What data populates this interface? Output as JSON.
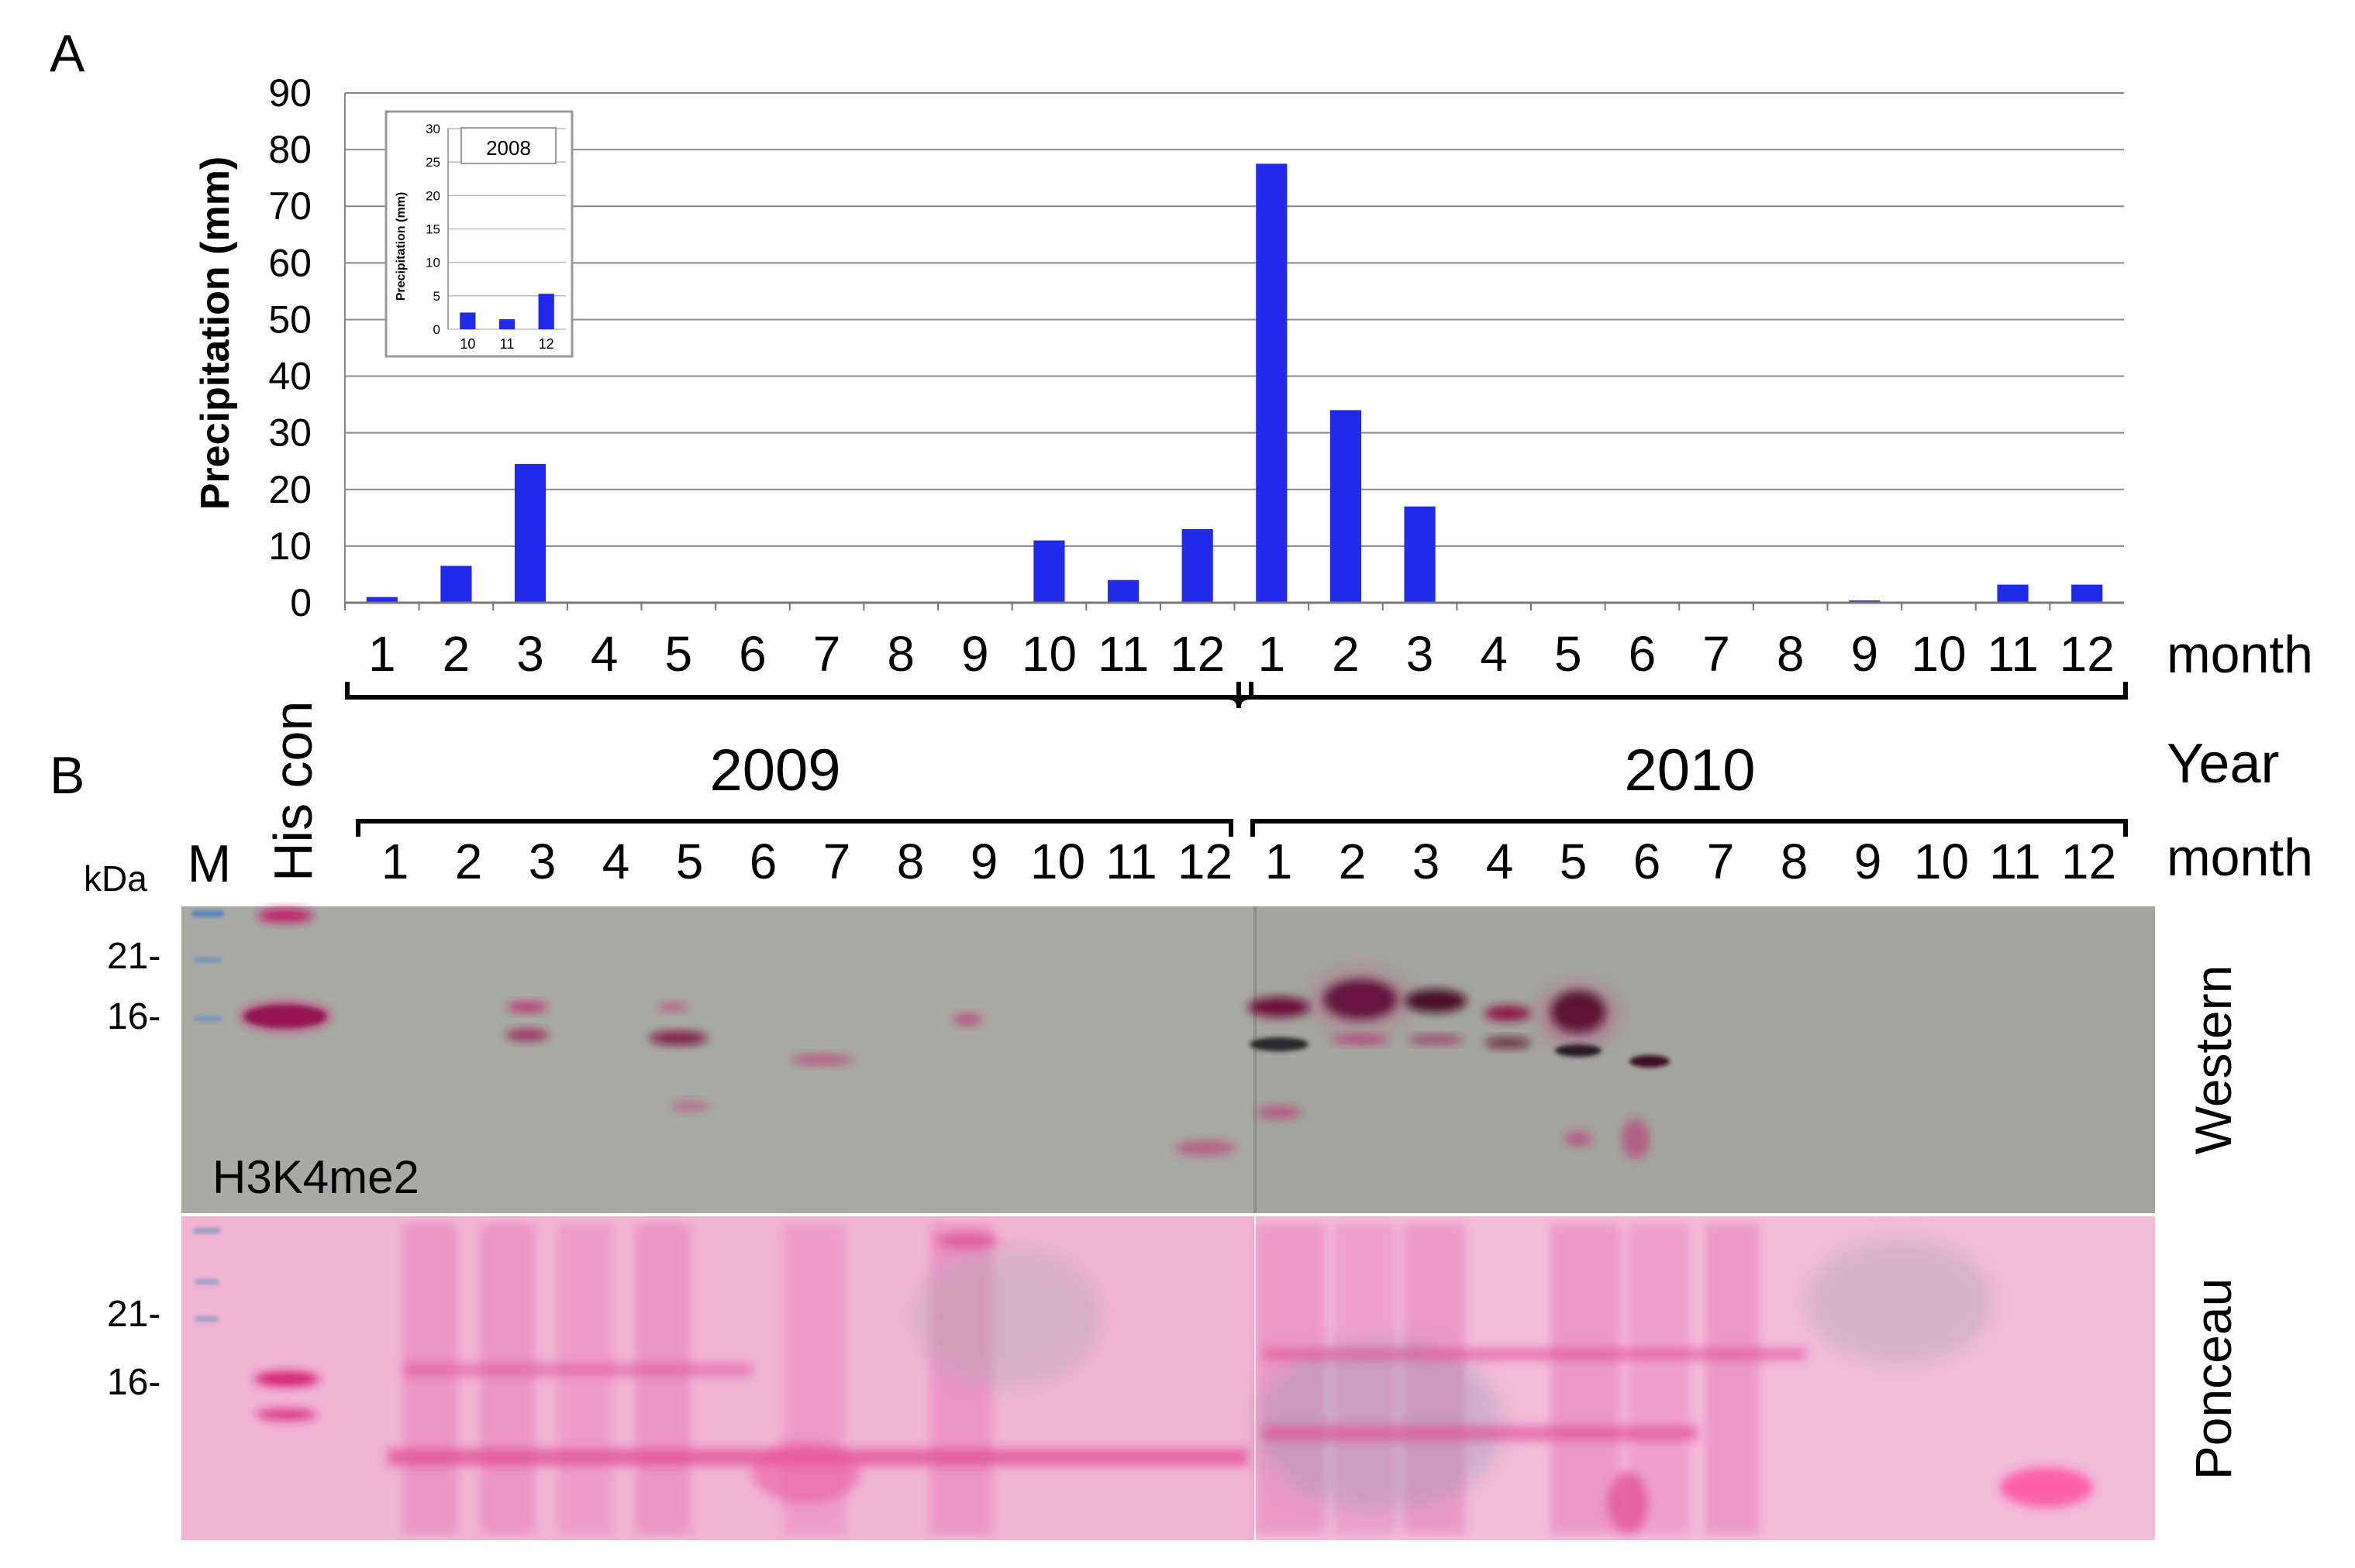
{
  "panel_a": {
    "label": "A",
    "chart_data": {
      "type": "bar",
      "title": "",
      "xlabel": "month",
      "ylabel": "Precipitation (mm)",
      "ylim": [
        0,
        90
      ],
      "yticks": [
        0,
        10,
        20,
        30,
        40,
        50,
        60,
        70,
        80,
        90
      ],
      "grid": true,
      "bar_color": "#1f2be8",
      "categories": [
        "1",
        "2",
        "3",
        "4",
        "5",
        "6",
        "7",
        "8",
        "9",
        "10",
        "11",
        "12",
        "1",
        "2",
        "3",
        "4",
        "5",
        "6",
        "7",
        "8",
        "9",
        "10",
        "11",
        "12"
      ],
      "values": [
        1,
        6.5,
        24.5,
        0,
        0,
        0,
        0,
        0,
        0,
        11,
        4,
        13,
        77.5,
        34,
        17,
        0,
        0,
        0,
        0,
        0,
        0.4,
        0,
        3.2,
        3.2
      ],
      "year_groups": [
        {
          "label": "2009",
          "from": 0,
          "to": 11
        },
        {
          "label": "2010",
          "from": 12,
          "to": 23
        }
      ],
      "year_axis_label": "Year"
    },
    "inset": {
      "chart_data": {
        "type": "bar",
        "title": "2008",
        "ylabel": "Precipitation (mm)",
        "ylim": [
          0,
          30
        ],
        "yticks": [
          0,
          5,
          10,
          15,
          20,
          25,
          30
        ],
        "categories": [
          "10",
          "11",
          "12"
        ],
        "values": [
          2.5,
          1.5,
          5.3
        ],
        "bar_color": "#1f2be8"
      }
    }
  },
  "panel_b": {
    "label": "B",
    "kda_label": "kDa",
    "marker_lane": "M",
    "control_lane": "His con",
    "month_axis_label": "month",
    "years": [
      "2009",
      "2010"
    ],
    "months_2009": [
      "1",
      "2",
      "3",
      "4",
      "5",
      "6",
      "7",
      "8",
      "9",
      "10",
      "11",
      "12"
    ],
    "months_2010": [
      "1",
      "2",
      "3",
      "4",
      "5",
      "6",
      "7",
      "8",
      "9",
      "10",
      "11",
      "12"
    ],
    "western": {
      "label": "Western",
      "antibody": "H3K4me2",
      "markers": [
        "21-",
        "16-"
      ],
      "bg_color": "#a9aaa4",
      "band_color": "#c01c6c"
    },
    "ponceau": {
      "label": "Ponceau",
      "markers": [
        "21-",
        "16-"
      ],
      "bg_color": "#f4b6d6",
      "band_color": "#e0488f"
    }
  }
}
